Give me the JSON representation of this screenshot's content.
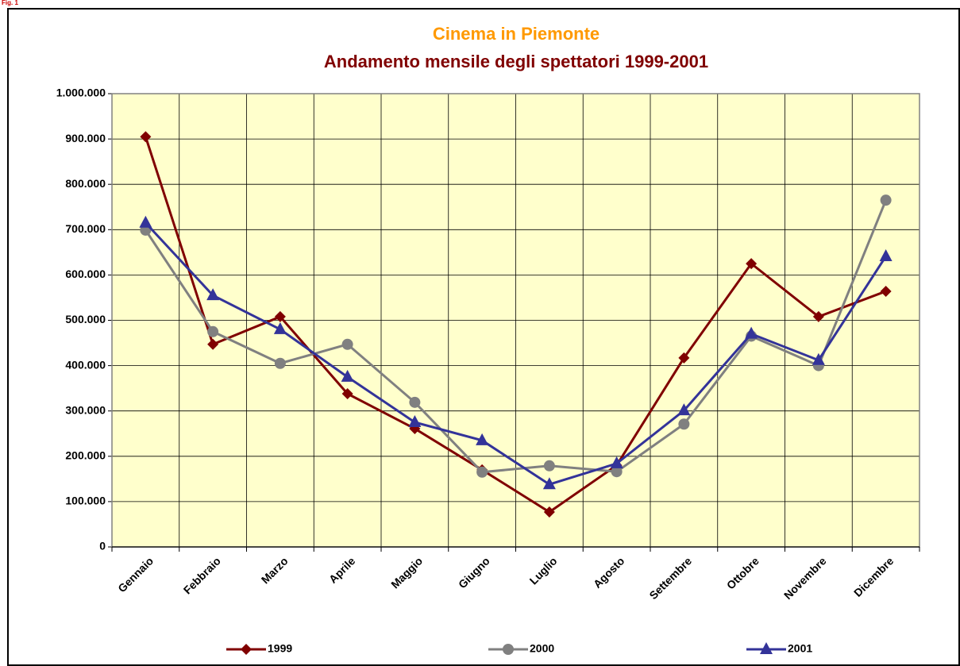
{
  "fig_label": "Fig. 1",
  "chart_data": {
    "type": "line",
    "title": "Cinema in Piemonte",
    "subtitle": "Andamento mensile degli spettatori 1999-2001",
    "categories": [
      "Gennaio",
      "Febbraio",
      "Marzo",
      "Aprile",
      "Maggio",
      "Giugno",
      "Luglio",
      "Agosto",
      "Settembre",
      "Ottobre",
      "Novembre",
      "Dicembre"
    ],
    "series": [
      {
        "name": "1999",
        "color": "#800000",
        "marker": "diamond",
        "values": [
          905000,
          447000,
          508000,
          338000,
          261000,
          170000,
          77000,
          180000,
          417000,
          625000,
          508000,
          564000
        ]
      },
      {
        "name": "2000",
        "color": "#808080",
        "marker": "circle",
        "values": [
          699000,
          475000,
          405000,
          447000,
          319000,
          165000,
          179000,
          166000,
          271000,
          465000,
          400000,
          765000
        ]
      },
      {
        "name": "2001",
        "color": "#333399",
        "marker": "triangle",
        "values": [
          715000,
          555000,
          480000,
          375000,
          275000,
          235000,
          138000,
          184000,
          301000,
          470000,
          412000,
          641000
        ]
      }
    ],
    "ylim": [
      0,
      1000000
    ],
    "yticks": [
      0,
      {
        "value": 100000,
        "label": "100.000"
      },
      {
        "value": 200000,
        "label": "200.000"
      },
      {
        "value": 300000,
        "label": "300.000"
      },
      {
        "value": 400000,
        "label": "400.000"
      },
      {
        "value": 500000,
        "label": "500.000"
      },
      {
        "value": 600000,
        "label": "600.000"
      },
      {
        "value": 700000,
        "label": "700.000"
      },
      {
        "value": 800000,
        "label": "800.000"
      },
      {
        "value": 900000,
        "label": "900.000"
      },
      {
        "value": 1000000,
        "label": "1.000.000"
      }
    ],
    "grid": true,
    "plot_background": "#ffffcc",
    "legend": "bottom"
  }
}
